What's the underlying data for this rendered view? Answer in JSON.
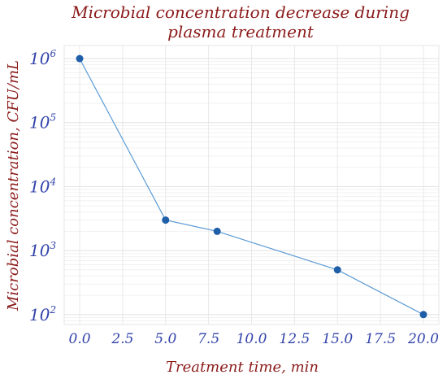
{
  "chart_data": {
    "type": "line",
    "title_line1": "Microbial concentration decrease during",
    "title_line2": "plasma treatment",
    "xlabel": "Treatment time, min",
    "ylabel": "Microbial concentration, CFU/mL",
    "x": [
      0,
      5,
      8,
      15,
      20
    ],
    "y": [
      1000000,
      3000,
      2000,
      500,
      100
    ],
    "xlim": [
      -0.9,
      20.9
    ],
    "ylim": [
      70,
      1600000
    ],
    "yscale": "log",
    "xticks": [
      0,
      2.5,
      5,
      7.5,
      10,
      12.5,
      15,
      17.5,
      20
    ],
    "xtick_labels": [
      "0.0",
      "2.5",
      "5.0",
      "7.5",
      "10.0",
      "12.5",
      "15.0",
      "17.5",
      "20.0"
    ],
    "yticks": [
      100,
      1000,
      10000,
      100000,
      1000000
    ],
    "ytick_base": "10",
    "ytick_exponents": [
      "2",
      "3",
      "4",
      "5",
      "6"
    ],
    "grid": true,
    "line_color": "#5b9bd5",
    "marker_color": "#1f5fa8"
  }
}
